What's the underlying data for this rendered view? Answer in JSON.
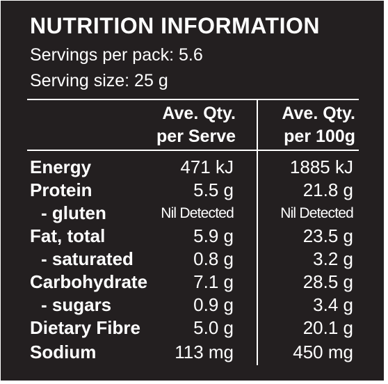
{
  "title": "NUTRITION INFORMATION",
  "servings_per_pack": "Servings per pack: 5.6",
  "serving_size": "Serving size: 25 g",
  "columns": {
    "serve_line1": "Ave. Qty.",
    "serve_line2": "per Serve",
    "g100_line1": "Ave. Qty.",
    "g100_line2": "per 100g"
  },
  "rows": [
    {
      "label": "Energy",
      "per_serve": "471 kJ",
      "per_100g": "1885 kJ"
    },
    {
      "label": "Protein",
      "per_serve": "5.5 g",
      "per_100g": "21.8 g"
    },
    {
      "label": "- gluten",
      "per_serve": "Nil Detected",
      "per_100g": "Nil Detected"
    },
    {
      "label": "Fat, total",
      "per_serve": "5.9 g",
      "per_100g": "23.5 g"
    },
    {
      "label": "- saturated",
      "per_serve": "0.8 g",
      "per_100g": "3.2 g"
    },
    {
      "label": "Carbohydrate",
      "per_serve": "7.1 g",
      "per_100g": "28.5 g"
    },
    {
      "label": "- sugars",
      "per_serve": "0.9 g",
      "per_100g": "3.4 g"
    },
    {
      "label": "Dietary Fibre",
      "per_serve": "5.0 g",
      "per_100g": "20.1 g"
    },
    {
      "label": "Sodium",
      "per_serve": "113 mg",
      "per_100g": "450 mg"
    }
  ]
}
